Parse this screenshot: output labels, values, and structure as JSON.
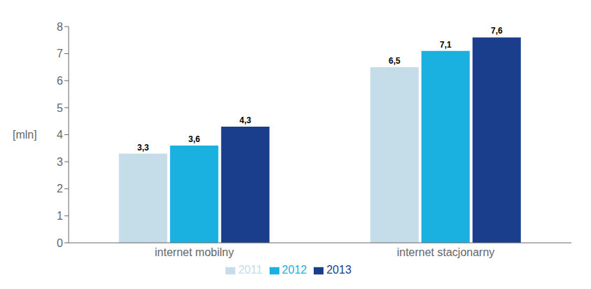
{
  "chart_data": {
    "type": "bar",
    "categories": [
      "internet mobilny",
      "internet stacjonarny"
    ],
    "series": [
      {
        "name": "2011",
        "color": "#c5dde8",
        "values": [
          3.3,
          6.5
        ],
        "value_labels": [
          "3,3",
          "6,5"
        ]
      },
      {
        "name": "2012",
        "color": "#1ab0e0",
        "values": [
          3.6,
          7.1
        ],
        "value_labels": [
          "3,6",
          "7,1"
        ]
      },
      {
        "name": "2013",
        "color": "#1a3e8c",
        "values": [
          4.3,
          7.6
        ],
        "value_labels": [
          "4,3",
          "7,6"
        ]
      }
    ],
    "ylabel": "[mln]",
    "ylim": [
      0,
      8
    ],
    "yticks": [
      0,
      1,
      2,
      3,
      4,
      5,
      6,
      7,
      8
    ],
    "grid": false,
    "legend": "bottom",
    "data_labels": true
  }
}
